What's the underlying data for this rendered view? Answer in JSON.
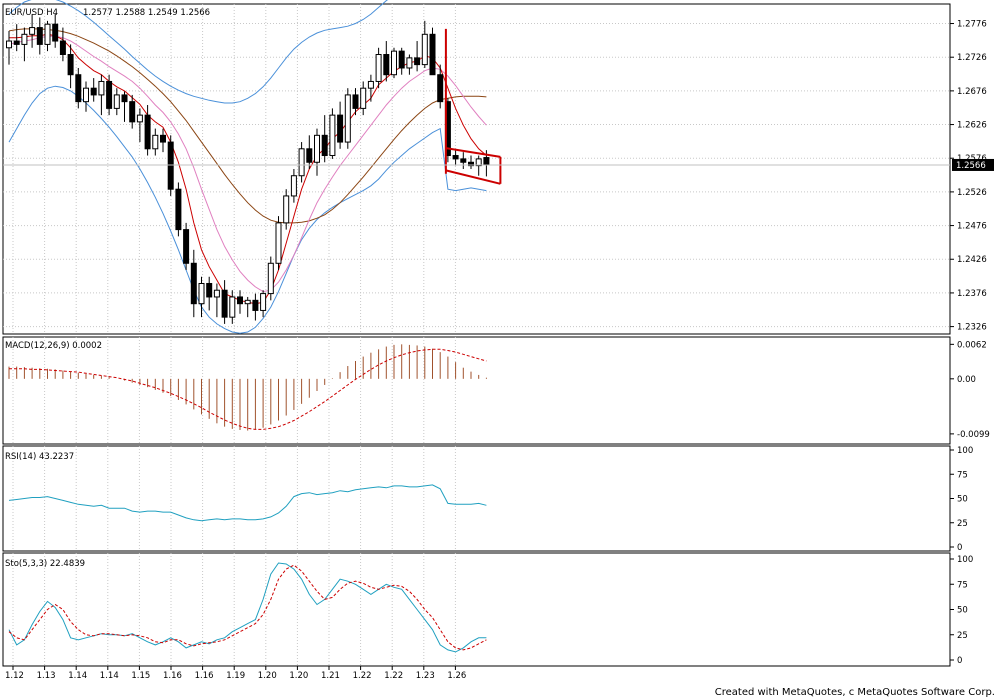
{
  "credit": "Created with MetaQuotes, c MetaQuotes Software Corp.",
  "colors": {
    "up_candle": "#ffffff",
    "down_candle": "#000000",
    "candle_outline": "#000000",
    "ma_fast": "#cc0000",
    "ma_mid": "#e080c0",
    "ma_slow": "#8b4513",
    "bollinger": "#4a90d9",
    "macd_hist": "#a0522d",
    "macd_signal": "#cc0000",
    "rsi": "#20a0c0",
    "sto_main": "#20a0c0",
    "sto_signal": "#cc0000",
    "pattern": "#cc0000",
    "grid": "#c8c8c8",
    "current_price_bg": "#000000",
    "current_price_fg": "#ffffff"
  },
  "chart_data": {
    "type": "candlestick",
    "symbol_label": "EUR/USD H4",
    "ohlc_label": "1.2577  1.2588  1.2549  1.2566",
    "current_price": "1.2566",
    "x_ticks": [
      "1.12",
      "1.13",
      "1.14",
      "1.14",
      "1.15",
      "1.16",
      "1.16",
      "1.19",
      "1.20",
      "1.20",
      "1.21",
      "1.22",
      "1.22",
      "1.23",
      "1.26"
    ],
    "price_ticks": [
      "1.2776",
      "1.2726",
      "1.2676",
      "1.2626",
      "1.2576",
      "1.2526",
      "1.2476",
      "1.2426",
      "1.2376",
      "1.2326"
    ],
    "ylim": [
      1.2315,
      1.2805
    ],
    "candles": [
      [
        1.274,
        1.2765,
        1.2715,
        1.275
      ],
      [
        1.275,
        1.2775,
        1.2735,
        1.2745
      ],
      [
        1.2745,
        1.277,
        1.272,
        1.276
      ],
      [
        1.276,
        1.279,
        1.274,
        1.277
      ],
      [
        1.277,
        1.2785,
        1.273,
        1.2745
      ],
      [
        1.2745,
        1.278,
        1.2735,
        1.2775
      ],
      [
        1.2775,
        1.279,
        1.274,
        1.275
      ],
      [
        1.275,
        1.277,
        1.272,
        1.273
      ],
      [
        1.273,
        1.2745,
        1.268,
        1.27
      ],
      [
        1.27,
        1.271,
        1.265,
        1.266
      ],
      [
        1.266,
        1.269,
        1.2645,
        1.268
      ],
      [
        1.268,
        1.2695,
        1.266,
        1.267
      ],
      [
        1.267,
        1.27,
        1.264,
        1.269
      ],
      [
        1.269,
        1.27,
        1.264,
        1.265
      ],
      [
        1.265,
        1.268,
        1.264,
        1.267
      ],
      [
        1.267,
        1.2675,
        1.263,
        1.266
      ],
      [
        1.266,
        1.267,
        1.262,
        1.263
      ],
      [
        1.263,
        1.265,
        1.26,
        1.264
      ],
      [
        1.264,
        1.2655,
        1.258,
        1.259
      ],
      [
        1.259,
        1.262,
        1.258,
        1.261
      ],
      [
        1.261,
        1.262,
        1.2585,
        1.26
      ],
      [
        1.26,
        1.261,
        1.252,
        1.253
      ],
      [
        1.253,
        1.254,
        1.246,
        1.247
      ],
      [
        1.247,
        1.248,
        1.241,
        1.242
      ],
      [
        1.242,
        1.244,
        1.234,
        1.236
      ],
      [
        1.236,
        1.24,
        1.234,
        1.239
      ],
      [
        1.239,
        1.24,
        1.235,
        1.237
      ],
      [
        1.237,
        1.239,
        1.234,
        1.238
      ],
      [
        1.238,
        1.2395,
        1.233,
        1.234
      ],
      [
        1.234,
        1.238,
        1.233,
        1.237
      ],
      [
        1.237,
        1.238,
        1.2345,
        1.236
      ],
      [
        1.236,
        1.237,
        1.234,
        1.2365
      ],
      [
        1.2365,
        1.2375,
        1.2335,
        1.235
      ],
      [
        1.235,
        1.238,
        1.234,
        1.2375
      ],
      [
        1.2375,
        1.243,
        1.2365,
        1.242
      ],
      [
        1.242,
        1.249,
        1.241,
        1.248
      ],
      [
        1.248,
        1.253,
        1.247,
        1.252
      ],
      [
        1.252,
        1.256,
        1.251,
        1.255
      ],
      [
        1.255,
        1.26,
        1.254,
        1.259
      ],
      [
        1.259,
        1.261,
        1.256,
        1.257
      ],
      [
        1.257,
        1.262,
        1.255,
        1.261
      ],
      [
        1.261,
        1.264,
        1.257,
        1.258
      ],
      [
        1.258,
        1.265,
        1.2575,
        1.264
      ],
      [
        1.264,
        1.266,
        1.259,
        1.26
      ],
      [
        1.26,
        1.268,
        1.259,
        1.267
      ],
      [
        1.267,
        1.268,
        1.264,
        1.265
      ],
      [
        1.265,
        1.269,
        1.264,
        1.268
      ],
      [
        1.268,
        1.27,
        1.266,
        1.269
      ],
      [
        1.269,
        1.274,
        1.268,
        1.273
      ],
      [
        1.273,
        1.275,
        1.269,
        1.27
      ],
      [
        1.27,
        1.274,
        1.2695,
        1.2735
      ],
      [
        1.2735,
        1.274,
        1.27,
        1.271
      ],
      [
        1.271,
        1.273,
        1.27,
        1.2725
      ],
      [
        1.2725,
        1.275,
        1.2705,
        1.2715
      ],
      [
        1.2715,
        1.278,
        1.271,
        1.276
      ],
      [
        1.276,
        1.277,
        1.27,
        1.27
      ],
      [
        1.27,
        1.2715,
        1.265,
        1.266
      ],
      [
        1.266,
        1.2665,
        1.257,
        1.258
      ],
      [
        1.258,
        1.259,
        1.2565,
        1.2575
      ],
      [
        1.2575,
        1.2585,
        1.256,
        1.257
      ],
      [
        1.257,
        1.258,
        1.256,
        1.2565
      ],
      [
        1.2565,
        1.258,
        1.255,
        1.2575
      ],
      [
        1.2577,
        1.2588,
        1.2549,
        1.2566
      ]
    ],
    "ma_fast": [
      1.2755,
      1.2755,
      1.2756,
      1.2758,
      1.2758,
      1.276,
      1.2758,
      1.2752,
      1.274,
      1.2725,
      1.2715,
      1.2706,
      1.27,
      1.269,
      1.2682,
      1.2676,
      1.2666,
      1.2656,
      1.264,
      1.263,
      1.2622,
      1.26,
      1.257,
      1.253,
      1.248,
      1.244,
      1.2415,
      1.2395,
      1.2375,
      1.237,
      1.2365,
      1.2362,
      1.236,
      1.2362,
      1.238,
      1.241,
      1.245,
      1.249,
      1.253,
      1.256,
      1.258,
      1.259,
      1.2605,
      1.2615,
      1.263,
      1.2645,
      1.2655,
      1.2665,
      1.2685,
      1.2695,
      1.2705,
      1.2712,
      1.2718,
      1.272,
      1.2728,
      1.2725,
      1.271,
      1.268,
      1.265,
      1.2625,
      1.2605,
      1.259,
      1.258
    ],
    "ma_mid": [
      1.2745,
      1.2748,
      1.275,
      1.2752,
      1.2755,
      1.2757,
      1.2757,
      1.2755,
      1.275,
      1.2743,
      1.2735,
      1.2727,
      1.272,
      1.2712,
      1.2705,
      1.2698,
      1.269,
      1.268,
      1.2668,
      1.2655,
      1.2644,
      1.263,
      1.2612,
      1.259,
      1.2562,
      1.253,
      1.25,
      1.247,
      1.2445,
      1.2425,
      1.2408,
      1.2395,
      1.2385,
      1.2378,
      1.238,
      1.2392,
      1.241,
      1.2432,
      1.2458,
      1.2485,
      1.251,
      1.253,
      1.2548,
      1.2565,
      1.258,
      1.2595,
      1.261,
      1.2625,
      1.264,
      1.2655,
      1.2668,
      1.268,
      1.269,
      1.2698,
      1.2706,
      1.271,
      1.2708,
      1.2698,
      1.2684,
      1.2668,
      1.2652,
      1.2638,
      1.2625
    ],
    "ma_slow": [
      1.2765,
      1.2767,
      1.2768,
      1.2768,
      1.2768,
      1.2767,
      1.2766,
      1.2764,
      1.2761,
      1.2757,
      1.2752,
      1.2747,
      1.2741,
      1.2735,
      1.2728,
      1.272,
      1.2712,
      1.2703,
      1.2693,
      1.2683,
      1.2672,
      1.266,
      1.2646,
      1.2632,
      1.2616,
      1.26,
      1.2584,
      1.2568,
      1.2552,
      1.2537,
      1.2523,
      1.251,
      1.2499,
      1.249,
      1.2484,
      1.2481,
      1.248,
      1.248,
      1.2481,
      1.2483,
      1.2487,
      1.2492,
      1.25,
      1.251,
      1.2522,
      1.2535,
      1.2548,
      1.2562,
      1.2576,
      1.259,
      1.2604,
      1.2617,
      1.2629,
      1.264,
      1.265,
      1.2658,
      1.2663,
      1.2665,
      1.2667,
      1.2668,
      1.2668,
      1.2668,
      1.2667
    ],
    "bb_upper": [
      1.279,
      1.28,
      1.2808,
      1.2812,
      1.2815,
      1.2815,
      1.2812,
      1.2808,
      1.2802,
      1.2795,
      1.2787,
      1.2778,
      1.2768,
      1.2758,
      1.2748,
      1.2738,
      1.2727,
      1.2717,
      1.2707,
      1.2698,
      1.269,
      1.2683,
      1.2677,
      1.2672,
      1.2668,
      1.2665,
      1.2662,
      1.266,
      1.2658,
      1.2658,
      1.266,
      1.2665,
      1.2672,
      1.2682,
      1.2695,
      1.271,
      1.2725,
      1.2738,
      1.2748,
      1.2756,
      1.2762,
      1.2766,
      1.2768,
      1.277,
      1.2772,
      1.2776,
      1.2782,
      1.279,
      1.28,
      1.281,
      1.2818,
      1.2822,
      1.2824,
      1.2824,
      1.2825,
      1.2826,
      1.2826,
      1.2826,
      1.2826,
      1.2826,
      1.2826,
      1.2826,
      1.2826
    ],
    "bb_lower": [
      1.26,
      1.262,
      1.264,
      1.2658,
      1.2672,
      1.268,
      1.2683,
      1.2681,
      1.2676,
      1.2668,
      1.2658,
      1.2647,
      1.2635,
      1.2622,
      1.2608,
      1.2593,
      1.2578,
      1.256,
      1.254,
      1.2518,
      1.2494,
      1.2468,
      1.244,
      1.241,
      1.238,
      1.2355,
      1.234,
      1.233,
      1.2323,
      1.2318,
      1.2316,
      1.2318,
      1.2325,
      1.2338,
      1.2355,
      1.2378,
      1.2405,
      1.2432,
      1.2455,
      1.2472,
      1.2485,
      1.2495,
      1.2503,
      1.251,
      1.2516,
      1.2522,
      1.2528,
      1.2535,
      1.2545,
      1.2558,
      1.257,
      1.258,
      1.259,
      1.2598,
      1.2606,
      1.2614,
      1.262,
      1.253,
      1.2528,
      1.253,
      1.2532,
      1.253,
      1.2528
    ],
    "pattern": {
      "flagpole_top": 1.2768,
      "flagpole_bottom": 1.2553,
      "upper_line": [
        1.2591,
        1.2578
      ],
      "lower_line": [
        1.2558,
        1.2538
      ]
    },
    "macd": {
      "label": "MACD(12,26,9)  0.0002",
      "ticks": [
        "0.0062",
        "0.00",
        "-0.0099"
      ],
      "ylim": [
        -0.011,
        0.0068
      ],
      "hist": [
        0.0022,
        0.0022,
        0.0021,
        0.002,
        0.0019,
        0.0018,
        0.0017,
        0.0015,
        0.0013,
        0.0011,
        0.0009,
        0.0007,
        0.0005,
        0.0003,
        0.0,
        -0.0003,
        -0.0007,
        -0.0011,
        -0.0015,
        -0.002,
        -0.0025,
        -0.0031,
        -0.0038,
        -0.0046,
        -0.0055,
        -0.0064,
        -0.0072,
        -0.008,
        -0.0086,
        -0.009,
        -0.0092,
        -0.0093,
        -0.0091,
        -0.0088,
        -0.0082,
        -0.0075,
        -0.0066,
        -0.0056,
        -0.0045,
        -0.0034,
        -0.0022,
        -0.0011,
        0.0001,
        0.0012,
        0.0023,
        0.0032,
        0.004,
        0.0047,
        0.0053,
        0.0058,
        0.0061,
        0.0062,
        0.0061,
        0.006,
        0.0058,
        0.0054,
        0.0048,
        0.004,
        0.003,
        0.002,
        0.0013,
        0.0007,
        0.0002
      ],
      "signal": [
        0.0018,
        0.0018,
        0.0018,
        0.0017,
        0.0017,
        0.0016,
        0.0015,
        0.0014,
        0.0013,
        0.0012,
        0.001,
        0.0008,
        0.0006,
        0.0004,
        0.0002,
        -0.0001,
        -0.0004,
        -0.0008,
        -0.0012,
        -0.0016,
        -0.0021,
        -0.0026,
        -0.0032,
        -0.0038,
        -0.0045,
        -0.0052,
        -0.006,
        -0.0067,
        -0.0074,
        -0.008,
        -0.0085,
        -0.0089,
        -0.0091,
        -0.0091,
        -0.0089,
        -0.0086,
        -0.0081,
        -0.0075,
        -0.0067,
        -0.0059,
        -0.005,
        -0.0041,
        -0.0031,
        -0.0021,
        -0.0011,
        -0.0001,
        0.0008,
        0.0017,
        0.0025,
        0.0032,
        0.0038,
        0.0043,
        0.0047,
        0.005,
        0.0052,
        0.0053,
        0.0053,
        0.0051,
        0.0048,
        0.0044,
        0.004,
        0.0036,
        0.0032
      ]
    },
    "rsi": {
      "label": "RSI(14)  43.2237",
      "ticks": [
        "100",
        "75",
        "50",
        "25",
        "0"
      ],
      "ylim": [
        0,
        100
      ],
      "values": [
        48,
        49,
        50,
        51,
        51,
        52,
        50,
        48,
        46,
        44,
        43,
        42,
        43,
        40,
        40,
        40,
        37,
        36,
        37,
        37,
        36,
        36,
        33,
        30,
        28,
        27,
        28,
        29,
        28,
        29,
        29,
        28,
        28,
        29,
        31,
        35,
        42,
        52,
        55,
        56,
        54,
        55,
        56,
        58,
        57,
        59,
        60,
        61,
        62,
        61,
        63,
        63,
        62,
        62,
        63,
        64,
        60,
        45,
        44,
        44,
        44,
        45,
        43
      ]
    },
    "sto": {
      "label": "Sto(5,3,3)  22.4839",
      "ticks": [
        "100",
        "75",
        "50",
        "25",
        "0"
      ],
      "ylim": [
        0,
        100
      ],
      "main": [
        30,
        15,
        20,
        35,
        48,
        58,
        52,
        40,
        22,
        20,
        22,
        24,
        26,
        25,
        25,
        24,
        26,
        22,
        18,
        15,
        18,
        22,
        18,
        12,
        15,
        18,
        16,
        20,
        22,
        28,
        32,
        36,
        40,
        60,
        85,
        96,
        95,
        90,
        80,
        65,
        55,
        60,
        70,
        80,
        78,
        75,
        70,
        65,
        70,
        75,
        72,
        70,
        60,
        50,
        40,
        30,
        15,
        10,
        8,
        12,
        18,
        22,
        22
      ],
      "signal": [
        28,
        22,
        20,
        30,
        40,
        50,
        55,
        50,
        38,
        30,
        25,
        24,
        26,
        26,
        25,
        24,
        25,
        24,
        22,
        18,
        17,
        20,
        20,
        16,
        14,
        16,
        17,
        18,
        20,
        24,
        28,
        32,
        36,
        45,
        60,
        80,
        90,
        94,
        88,
        78,
        68,
        60,
        62,
        70,
        76,
        78,
        76,
        72,
        70,
        72,
        74,
        73,
        68,
        60,
        50,
        42,
        30,
        18,
        12,
        10,
        12,
        16,
        20
      ]
    }
  }
}
